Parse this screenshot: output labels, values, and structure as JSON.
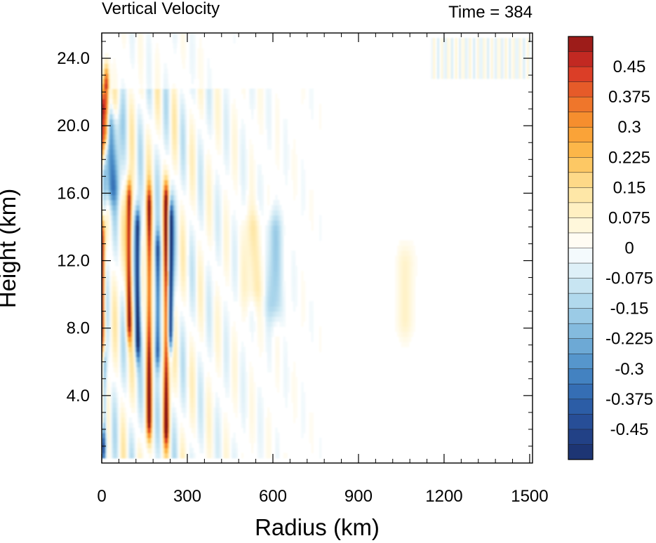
{
  "chart_data": {
    "type": "heatmap",
    "title": "Vertical Velocity",
    "subtitle": "Time = 384",
    "xlabel": "Radius (km)",
    "ylabel": "Height (km)",
    "xlim": [
      0,
      1510
    ],
    "ylim": [
      0,
      25.5
    ],
    "x_ticks": [
      0,
      300,
      600,
      900,
      1200,
      1500
    ],
    "x_tick_labels": [
      "0",
      "300",
      "600",
      "900",
      "1200",
      "1500"
    ],
    "y_ticks": [
      4,
      8,
      12,
      16,
      20,
      24
    ],
    "y_tick_labels": [
      "4.0",
      "8.0",
      "12.0",
      "16.0",
      "20.0",
      "24.0"
    ],
    "grid": false,
    "colorbar": {
      "placement": "right",
      "min": -0.525,
      "max": 0.525,
      "step": 0.0375,
      "labels": [
        "0.45",
        "0.375",
        "0.3",
        "0.225",
        "0.15",
        "0.075",
        "0",
        "-0.075",
        "-0.15",
        "-0.225",
        "-0.3",
        "-0.375",
        "-0.45"
      ],
      "label_values": [
        0.45,
        0.375,
        0.3,
        0.225,
        0.15,
        0.075,
        0,
        -0.075,
        -0.15,
        -0.225,
        -0.3,
        -0.375,
        -0.45
      ],
      "stops": [
        {
          "v": -0.525,
          "color": "#1b2f6b"
        },
        {
          "v": -0.45,
          "color": "#24478f"
        },
        {
          "v": -0.375,
          "color": "#2e64ad"
        },
        {
          "v": -0.3,
          "color": "#4a8cc7"
        },
        {
          "v": -0.225,
          "color": "#78b3da"
        },
        {
          "v": -0.15,
          "color": "#a6d3ea"
        },
        {
          "v": -0.075,
          "color": "#d3ebf5"
        },
        {
          "v": 0,
          "color": "#ffffff"
        },
        {
          "v": 0.075,
          "color": "#fff4cf"
        },
        {
          "v": 0.15,
          "color": "#fee29a"
        },
        {
          "v": 0.225,
          "color": "#fdbf52"
        },
        {
          "v": 0.3,
          "color": "#f99a2f"
        },
        {
          "v": 0.375,
          "color": "#ec6a2a"
        },
        {
          "v": 0.45,
          "color": "#d52f26"
        },
        {
          "v": 0.525,
          "color": "#8a1515"
        }
      ]
    },
    "features": [
      {
        "kind": "updraft",
        "r_km": 0,
        "z_km": [
          0.5,
          23
        ],
        "w": 0.55
      },
      {
        "kind": "downdraft",
        "r_km": 5,
        "z_km": [
          0.5,
          6
        ],
        "w": -0.55
      },
      {
        "kind": "downdraft",
        "r_km": 3,
        "z_km": [
          15,
          17
        ],
        "w": -0.5
      },
      {
        "kind": "updraft",
        "r_km": 15,
        "z_km": [
          19.5,
          22.5
        ],
        "w": 0.5
      },
      {
        "kind": "downdraft",
        "r_km": 28,
        "z_km": [
          16,
          20
        ],
        "w": -0.3
      },
      {
        "kind": "updraft",
        "r_km": 95,
        "z_km": [
          7.5,
          16.2
        ],
        "w": 0.55
      },
      {
        "kind": "downdraft",
        "r_km": 125,
        "z_km": [
          6.5,
          14.5
        ],
        "w": -0.55
      },
      {
        "kind": "updraft",
        "r_km": 165,
        "z_km": [
          1,
          16.5
        ],
        "w": 0.5
      },
      {
        "kind": "downdraft",
        "r_km": 195,
        "z_km": [
          6,
          13
        ],
        "w": -0.45
      },
      {
        "kind": "updraft",
        "r_km": 225,
        "z_km": [
          0.5,
          16.8
        ],
        "w": 0.55
      },
      {
        "kind": "downdraft",
        "r_km": 240,
        "z_km": [
          7,
          15
        ],
        "w": -0.55
      },
      {
        "kind": "downdraft",
        "r_km": 600,
        "z_km": [
          9,
          14
        ],
        "w": -0.15
      },
      {
        "kind": "updraft",
        "r_km": 530,
        "z_km": [
          10,
          14
        ],
        "w": 0.12
      },
      {
        "kind": "updraft",
        "r_km": 1060,
        "z_km": [
          8,
          12
        ],
        "w": 0.08
      }
    ]
  }
}
